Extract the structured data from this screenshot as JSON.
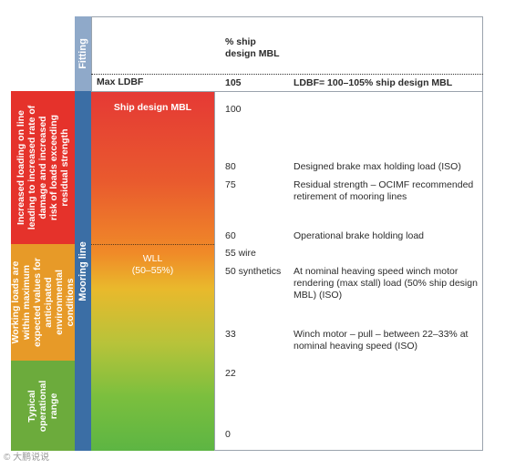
{
  "header": {
    "fitting_label": "Fitting",
    "pct_header_line1": "% ship",
    "pct_header_line2": "design MBL",
    "max_ldbf_label": "Max LDBF",
    "max_ldbf_value": "105",
    "max_ldbf_desc": "LDBF= 100–105% ship design MBL"
  },
  "mooring_line_label": "Mooring line",
  "bands": {
    "red": "Increased loading on line\nleading to increased rate of\ndamage and increased\nrisk of loads exceeding\nresidual strength",
    "orange": "Working loads are\nwithin maximum\nexpected values for\nanticipated\nenvironmental\nconditions",
    "green": "Typical\noperational\nrange"
  },
  "gradient_labels": {
    "ship_design_mbl": "Ship design MBL",
    "wll_line1": "WLL",
    "wll_line2": "(50–55%)"
  },
  "levels": [
    {
      "value": "100",
      "desc": ""
    },
    {
      "value": "80",
      "desc": "Designed brake max holding load (ISO)"
    },
    {
      "value": "75",
      "desc": "Residual strength – OCIMF recommended retirement of mooring lines"
    },
    {
      "value": "60",
      "desc": "Operational brake holding load"
    },
    {
      "value": "55 wire",
      "desc": ""
    },
    {
      "value": "50 synthetics",
      "desc": "At nominal heaving speed winch motor rendering (max stall) load (50% ship design MBL) (ISO)"
    },
    {
      "value": "33",
      "desc": "Winch motor – pull – between 22–33% at nominal heaving speed (ISO)"
    },
    {
      "value": "22",
      "desc": ""
    },
    {
      "value": "0",
      "desc": ""
    }
  ],
  "watermark": "© 大鹏说说"
}
